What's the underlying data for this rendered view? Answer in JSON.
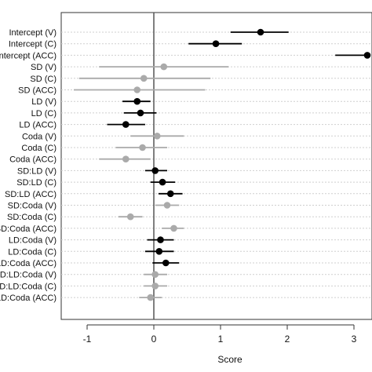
{
  "chart_data": {
    "type": "scatter",
    "subtype": "coefficient-plot-with-intervals",
    "xlabel": "Score",
    "ylabel": "",
    "xlim": [
      -1.4,
      3.2
    ],
    "xticks": [
      -1,
      0,
      1,
      2,
      3
    ],
    "tick_labels": [
      "-1",
      "0",
      "1",
      "2",
      "3"
    ],
    "grid": "dotted-horizontal",
    "reference_line_x": 0,
    "colors": {
      "significant": "#000000",
      "nonsignificant": "#aaaaaa"
    },
    "points": [
      {
        "label": "Intercept (V)",
        "estimate": 1.6,
        "low": 1.15,
        "high": 2.02,
        "significant": true
      },
      {
        "label": "Intercept (C)",
        "estimate": 0.93,
        "low": 0.52,
        "high": 1.32,
        "significant": true
      },
      {
        "label": "Intercept (ACC)",
        "estimate": 3.2,
        "low": 2.72,
        "high": 3.2,
        "significant": true
      },
      {
        "label": "SD (V)",
        "estimate": 0.15,
        "low": -0.82,
        "high": 1.12,
        "significant": false
      },
      {
        "label": "SD (C)",
        "estimate": -0.15,
        "low": -1.12,
        "high": 0.85,
        "significant": false
      },
      {
        "label": "SD (ACC)",
        "estimate": -0.25,
        "low": -1.2,
        "high": 0.77,
        "significant": false
      },
      {
        "label": "LD (V)",
        "estimate": -0.25,
        "low": -0.47,
        "high": -0.05,
        "significant": true
      },
      {
        "label": "LD (C)",
        "estimate": -0.2,
        "low": -0.45,
        "high": 0.04,
        "significant": true
      },
      {
        "label": "LD (ACC)",
        "estimate": -0.42,
        "low": -0.7,
        "high": -0.13,
        "significant": true
      },
      {
        "label": "Coda (V)",
        "estimate": 0.05,
        "low": -0.35,
        "high": 0.45,
        "significant": false
      },
      {
        "label": "Coda (C)",
        "estimate": -0.17,
        "low": -0.57,
        "high": 0.2,
        "significant": false
      },
      {
        "label": "Coda (ACC)",
        "estimate": -0.42,
        "low": -0.82,
        "high": -0.05,
        "significant": false
      },
      {
        "label": "SD:LD (V)",
        "estimate": 0.02,
        "low": -0.13,
        "high": 0.2,
        "significant": true
      },
      {
        "label": "SD:LD (C)",
        "estimate": 0.13,
        "low": -0.05,
        "high": 0.32,
        "significant": true
      },
      {
        "label": "SD:LD (ACC)",
        "estimate": 0.25,
        "low": 0.07,
        "high": 0.43,
        "significant": true
      },
      {
        "label": "SD:Coda (V)",
        "estimate": 0.2,
        "low": 0.02,
        "high": 0.38,
        "significant": false
      },
      {
        "label": "SD:Coda (C)",
        "estimate": -0.35,
        "low": -0.53,
        "high": -0.17,
        "significant": false
      },
      {
        "label": "SD:Coda (ACC)",
        "estimate": 0.3,
        "low": 0.12,
        "high": 0.45,
        "significant": false
      },
      {
        "label": "LD:Coda (V)",
        "estimate": 0.1,
        "low": -0.1,
        "high": 0.3,
        "significant": true
      },
      {
        "label": "LD:Coda (C)",
        "estimate": 0.08,
        "low": -0.13,
        "high": 0.3,
        "significant": true
      },
      {
        "label": "LD:Coda (ACC)",
        "estimate": 0.18,
        "low": -0.02,
        "high": 0.38,
        "significant": true
      },
      {
        "label": "SD:LD:Coda (V)",
        "estimate": 0.02,
        "low": -0.15,
        "high": 0.2,
        "significant": false
      },
      {
        "label": "SD:LD:Coda (C)",
        "estimate": 0.02,
        "low": -0.15,
        "high": 0.2,
        "significant": false
      },
      {
        "label": "SD:LD:Coda (ACC)",
        "estimate": -0.05,
        "low": -0.22,
        "high": 0.12,
        "significant": false
      }
    ]
  }
}
